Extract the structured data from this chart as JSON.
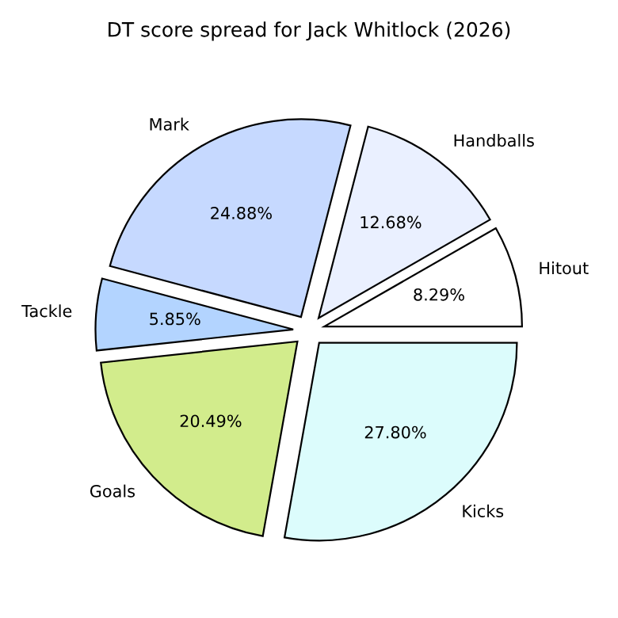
{
  "chart_data": {
    "type": "pie",
    "title": "DT score spread for Jack Whitlock (2026)",
    "categories": [
      "Hitout",
      "Handballs",
      "Mark",
      "Tackle",
      "Goals",
      "Kicks"
    ],
    "values": [
      8.29,
      12.68,
      24.88,
      5.85,
      20.49,
      27.8
    ],
    "value_labels": [
      "8.29%",
      "12.68%",
      "24.88%",
      "5.85%",
      "20.49%",
      "27.80%"
    ],
    "colors": [
      "#ffffff",
      "#eaf0ff",
      "#c6d9ff",
      "#b3d4ff",
      "#d2ec8c",
      "#dcfcfc"
    ]
  }
}
